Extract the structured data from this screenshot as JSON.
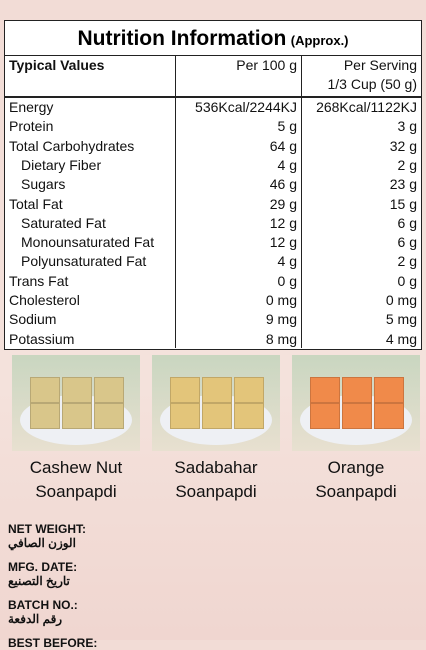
{
  "table": {
    "title": "Nutrition Information",
    "title_note": "(Approx.)",
    "header": [
      "Typical Values",
      "Per 100 g",
      "Per Serving",
      "1/3 Cup (50 g)"
    ],
    "rows": [
      {
        "label": "Energy",
        "per_100g": "536Kcal/2244KJ",
        "per_serving": "268Kcal/1122KJ",
        "indent": false
      },
      {
        "label": "Protein",
        "per_100g": "5 g",
        "per_serving": "3 g",
        "indent": false
      },
      {
        "label": "Total Carbohydrates",
        "per_100g": "64 g",
        "per_serving": "32 g",
        "indent": false
      },
      {
        "label": "Dietary Fiber",
        "per_100g": "4 g",
        "per_serving": "2 g",
        "indent": true
      },
      {
        "label": "Sugars",
        "per_100g": "46 g",
        "per_serving": "23 g",
        "indent": true
      },
      {
        "label": "Total Fat",
        "per_100g": "29 g",
        "per_serving": "15 g",
        "indent": false
      },
      {
        "label": "Saturated Fat",
        "per_100g": "12 g",
        "per_serving": "6 g",
        "indent": true
      },
      {
        "label": "Monounsaturated Fat",
        "per_100g": "12 g",
        "per_serving": "6 g",
        "indent": true
      },
      {
        "label": "Polyunsaturated Fat",
        "per_100g": "4 g",
        "per_serving": "2 g",
        "indent": true
      },
      {
        "label": "Trans Fat",
        "per_100g": "0 g",
        "per_serving": "0 g",
        "indent": false
      },
      {
        "label": "Cholesterol",
        "per_100g": "0 mg",
        "per_serving": "0 mg",
        "indent": false
      },
      {
        "label": "Sodium",
        "per_100g": "9 mg",
        "per_serving": "5 mg",
        "indent": false
      },
      {
        "label": "Potassium",
        "per_100g": "8 mg",
        "per_serving": "4 mg",
        "indent": false
      }
    ]
  },
  "products": [
    {
      "line1": "Cashew Nut",
      "line2": "Soanpapdi",
      "color": "#d9c68a"
    },
    {
      "line1": "Sadabahar",
      "line2": "Soanpapdi",
      "color": "#e3c57a"
    },
    {
      "line1": "Orange",
      "line2": "Soanpapdi",
      "color": "#f08a4a"
    }
  ],
  "fields": [
    {
      "label": "NET WEIGHT:",
      "arabic": "الوزن الصافي"
    },
    {
      "label": "MFG. DATE:",
      "arabic": "تاريخ التصنيع"
    },
    {
      "label": "BATCH NO.:",
      "arabic": "رقم الدفعة"
    },
    {
      "label": "BEST BEFORE:",
      "arabic": ""
    }
  ]
}
